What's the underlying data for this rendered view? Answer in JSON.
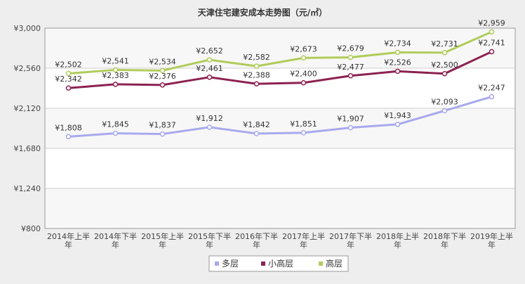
{
  "chart_data": {
    "type": "line",
    "title": "天津住宅建安成本走势图（元/㎡）",
    "xlabel": "",
    "ylabel": "",
    "categories": [
      "2014年上半年",
      "2014年下半年",
      "2015年上半年",
      "2015年下半年",
      "2016年下半年",
      "2017年上半年",
      "2017年下半年",
      "2018年上半年",
      "2018年下半年",
      "2019年上半年"
    ],
    "category_lines": [
      [
        "2014年上半",
        "年"
      ],
      [
        "2014年下半",
        "年"
      ],
      [
        "2015年上半",
        "年"
      ],
      [
        "2015年下半",
        "年"
      ],
      [
        "2016年下半",
        "年"
      ],
      [
        "2017年上半",
        "年"
      ],
      [
        "2017年下半",
        "年"
      ],
      [
        "2018年上半",
        "年"
      ],
      [
        "2018年下半",
        "年"
      ],
      [
        "2019年上半",
        "年"
      ]
    ],
    "ylim": [
      800,
      3000
    ],
    "yticks": [
      800,
      1240,
      1680,
      2120,
      2560,
      3000
    ],
    "ytick_labels": [
      "¥800",
      "¥1,240",
      "¥1,680",
      "¥2,120",
      "¥2,560",
      "¥3,000"
    ],
    "grid": true,
    "legend_position": "bottom",
    "series": [
      {
        "name": "多层",
        "color": "#a9a9ee",
        "values": [
          1808,
          1845,
          1837,
          1912,
          1842,
          1851,
          1907,
          1943,
          2093,
          2247
        ],
        "labels": [
          "¥1,808",
          "¥1,845",
          "¥1,837",
          "¥1,912",
          "¥1,842",
          "¥1,851",
          "¥1,907",
          "¥1,943",
          "¥2,093",
          "¥2,247"
        ]
      },
      {
        "name": "小高层",
        "color": "#8c2251",
        "values": [
          2342,
          2383,
          2376,
          2461,
          2388,
          2400,
          2477,
          2526,
          2500,
          2741
        ],
        "labels": [
          "¥2,342",
          "¥2,383",
          "¥2,376",
          "¥2,461",
          "¥2,388",
          "¥2,400",
          "¥2,477",
          "¥2,526",
          "¥2,500",
          "¥2,741"
        ]
      },
      {
        "name": "高层",
        "color": "#b0cc5a",
        "values": [
          2502,
          2541,
          2534,
          2652,
          2582,
          2673,
          2679,
          2734,
          2731,
          2959
        ],
        "labels": [
          "¥2,502",
          "¥2,541",
          "¥2,534",
          "¥2,652",
          "¥2,582",
          "¥2,673",
          "¥2,679",
          "¥2,734",
          "¥2,731",
          "¥2,959"
        ]
      }
    ]
  }
}
